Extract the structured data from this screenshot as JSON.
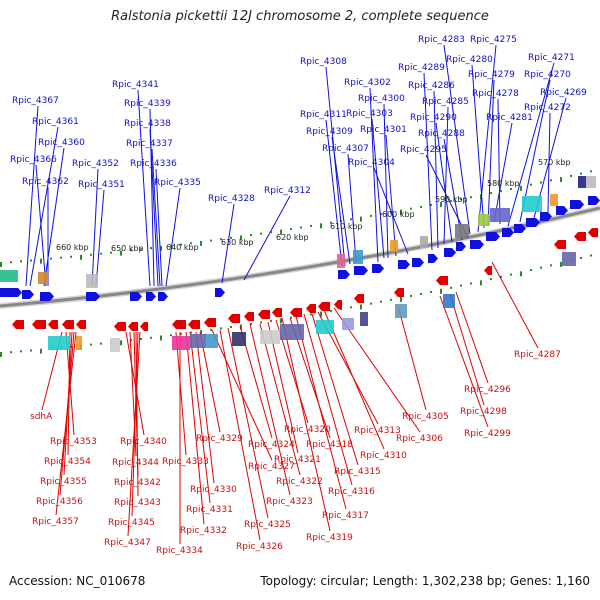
{
  "title": "Ralstonia pickettii 12J chromosome 2, complete sequence",
  "footer": {
    "accession": "Accession: NC_010678",
    "summary": "Topology: circular; Length: 1,302,238 bp; Genes: 1,160"
  },
  "colors": {
    "forward": "#1010e0",
    "reverse": "#e00000",
    "backbone": "#888888",
    "ticks": "#2a8a2a"
  },
  "ticks": [
    "660 kbp",
    "650 kbp",
    "640 kbp",
    "630 kbp",
    "620 kbp",
    "610 kbp",
    "600 kbp",
    "590 kbp",
    "580 kbp",
    "570 kbp"
  ],
  "forward_labels": [
    "Rpic_4367",
    "Rpic_4361",
    "Rpic_4360",
    "Rpic_4366",
    "Rpic_4362",
    "Rpic_4352",
    "Rpic_4351",
    "Rpic_4341",
    "Rpic_4339",
    "Rpic_4338",
    "Rpic_4337",
    "Rpic_4336",
    "Rpic_4335",
    "Rpic_4328",
    "Rpic_4312",
    "Rpic_4308",
    "Rpic_4311",
    "Rpic_4309",
    "Rpic_4307",
    "Rpic_4302",
    "Rpic_4300",
    "Rpic_4303",
    "Rpic_4301",
    "Rpic_4304",
    "Rpic_4289",
    "Rpic_4286",
    "Rpic_4285",
    "Rpic_4290",
    "Rpic_4288",
    "Rpic_4295",
    "Rpic_4283",
    "Rpic_4275",
    "Rpic_4280",
    "Rpic_4271",
    "Rpic_4279",
    "Rpic_4270",
    "Rpic_4278",
    "Rpic_4269",
    "Rpic_4281",
    "Rpic_4272"
  ],
  "reverse_labels": [
    "sdhA",
    "Rpic_4353",
    "Rpic_4354",
    "Rpic_4355",
    "Rpic_4356",
    "Rpic_4357",
    "Rpic_4340",
    "Rpic_4344",
    "Rpic_4342",
    "Rpic_4343",
    "Rpic_4345",
    "Rpic_4347",
    "Rpic_4333",
    "Rpic_4334",
    "Rpic_4332",
    "Rpic_4331",
    "Rpic_4330",
    "Rpic_4329",
    "Rpic_4327",
    "Rpic_4326",
    "Rpic_4325",
    "Rpic_4324",
    "Rpic_4323",
    "Rpic_4322",
    "Rpic_4321",
    "Rpic_4320",
    "Rpic_4319",
    "Rpic_4318",
    "Rpic_4317",
    "Rpic_4316",
    "Rpic_4315",
    "Rpic_4313",
    "Rpic_4310",
    "Rpic_4306",
    "Rpic_4305",
    "Rpic_4299",
    "Rpic_4298",
    "Rpic_4296",
    "Rpic_4287"
  ]
}
